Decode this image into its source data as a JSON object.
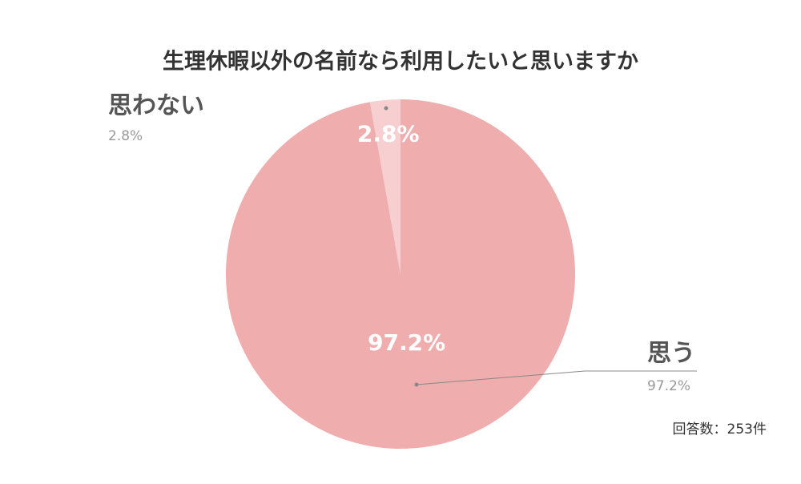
{
  "chart_data": {
    "type": "pie",
    "title": "生理休暇以外の名前なら利用したいと思いますか",
    "categories": [
      "思う",
      "思わない"
    ],
    "values": [
      97.2,
      2.8
    ],
    "value_labels": [
      "97.2%",
      "2.8%"
    ],
    "colors": [
      "#f0adad",
      "#f7cfd0"
    ],
    "note": "回答数：253件"
  }
}
